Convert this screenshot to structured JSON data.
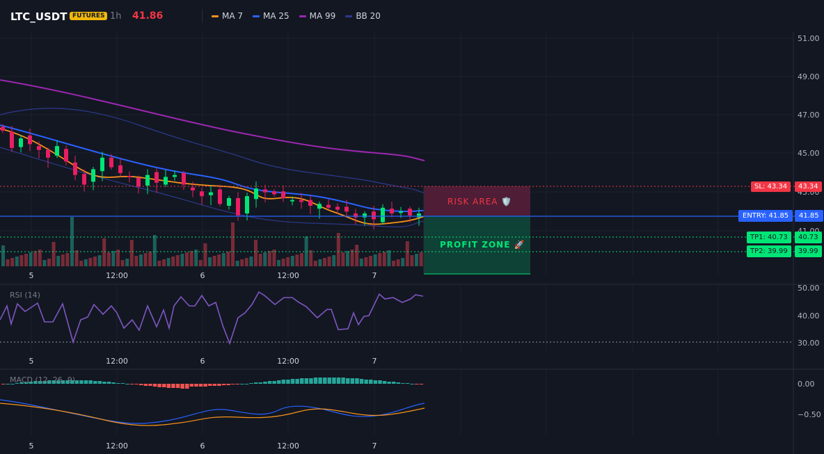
{
  "header": {
    "symbol": "LTC_USDT",
    "badge": "FUTURES",
    "timeframe": "1h",
    "last_price": "41.86",
    "legend": [
      {
        "label": "MA 7",
        "color": "#f7931a"
      },
      {
        "label": "MA 25",
        "color": "#2962ff"
      },
      {
        "label": "MA 99",
        "color": "#9c27b0"
      },
      {
        "label": "BB 20",
        "color": "#2c3a8c"
      }
    ]
  },
  "price_axis": {
    "ticks": [
      "51.00",
      "49.00",
      "47.00",
      "45.00",
      "43.00",
      "41.00"
    ]
  },
  "time_axis": {
    "ticks": [
      "5",
      "12:00",
      "6",
      "12:00",
      "7"
    ]
  },
  "levels": {
    "sl": {
      "left": "SL: 43.34",
      "right": "43.34",
      "color": "#f23645"
    },
    "entry": {
      "left": "ENTRY: 41.85",
      "right": "41.85",
      "color": "#2962ff"
    },
    "tp1": {
      "left": "TP1: 40.73",
      "right": "40.73",
      "color": "#00e676"
    },
    "tp2": {
      "left": "TP2: 39.99",
      "right": "39.99",
      "color": "#00e676"
    }
  },
  "zones": {
    "risk": "RISK AREA 🛡️",
    "profit": "PROFIT ZONE 🚀"
  },
  "rsi": {
    "label": "RSI (14)",
    "ticks": [
      "50.00",
      "40.00",
      "30.00"
    ]
  },
  "macd": {
    "label": "MACD (12, 26, 9)",
    "ticks": [
      "0.00",
      "−0.50"
    ]
  },
  "colors": {
    "up": "#26a69a",
    "down": "#ef5350",
    "bull_body": "#00e676",
    "bear_body": "#e91e63"
  },
  "chart_data": {
    "type": "candlestick",
    "symbol": "LTC_USDT",
    "price_range": [
      40.0,
      51.0
    ],
    "candles_close_estimates": [
      46.2,
      45.3,
      45.8,
      45.5,
      45.2,
      44.8,
      45.4,
      44.6,
      43.9,
      43.4,
      44.2,
      44.8,
      44.3,
      44.0,
      43.8,
      43.3,
      43.9,
      43.5,
      43.8,
      43.9,
      43.4,
      43.1,
      42.8,
      43.0,
      42.4,
      42.7,
      41.8,
      42.8,
      43.2,
      43.0,
      42.9,
      42.7,
      42.6,
      42.5,
      42.3,
      42.4,
      42.2,
      42.1,
      42.0,
      41.7,
      41.9,
      41.6,
      42.2,
      41.9,
      42.0,
      41.8,
      41.9
    ],
    "rsi_range": [
      25,
      55
    ],
    "macd_range": [
      -0.8,
      0.1
    ]
  }
}
